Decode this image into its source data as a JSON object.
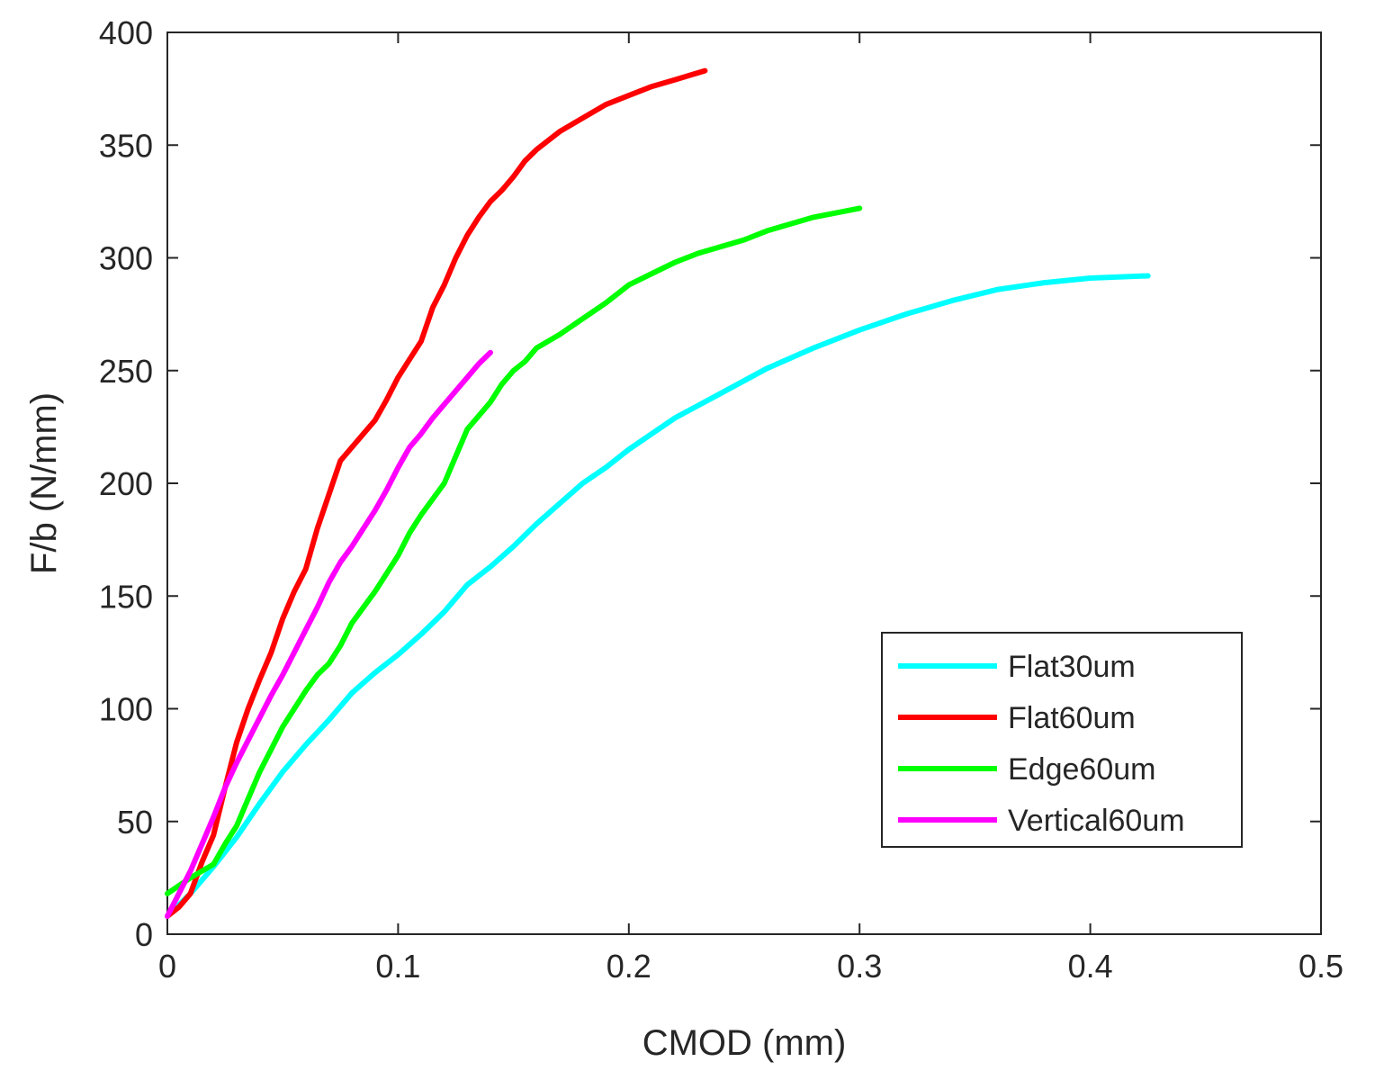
{
  "chart_data": {
    "type": "line",
    "xlabel": "CMOD (mm)",
    "ylabel": "F/b (N/mm)",
    "xlim": [
      0,
      0.5
    ],
    "ylim": [
      0,
      400
    ],
    "xticks": [
      "0",
      "0.1",
      "0.2",
      "0.3",
      "0.4",
      "0.5"
    ],
    "yticks": [
      "0",
      "50",
      "100",
      "150",
      "200",
      "250",
      "300",
      "350",
      "400"
    ],
    "grid": false,
    "legend_position": "bottom-right",
    "series": [
      {
        "name": "Flat30um",
        "color": "#00ffff",
        "points": [
          [
            0,
            8
          ],
          [
            0.01,
            18
          ],
          [
            0.02,
            30
          ],
          [
            0.03,
            43
          ],
          [
            0.04,
            58
          ],
          [
            0.05,
            72
          ],
          [
            0.06,
            84
          ],
          [
            0.07,
            95
          ],
          [
            0.08,
            107
          ],
          [
            0.09,
            116
          ],
          [
            0.1,
            124
          ],
          [
            0.11,
            133
          ],
          [
            0.12,
            143
          ],
          [
            0.13,
            155
          ],
          [
            0.14,
            163
          ],
          [
            0.15,
            172
          ],
          [
            0.16,
            182
          ],
          [
            0.17,
            191
          ],
          [
            0.18,
            200
          ],
          [
            0.19,
            207
          ],
          [
            0.2,
            215
          ],
          [
            0.22,
            229
          ],
          [
            0.24,
            240
          ],
          [
            0.26,
            251
          ],
          [
            0.28,
            260
          ],
          [
            0.3,
            268
          ],
          [
            0.32,
            275
          ],
          [
            0.34,
            281
          ],
          [
            0.36,
            286
          ],
          [
            0.38,
            289
          ],
          [
            0.4,
            291
          ],
          [
            0.425,
            292
          ]
        ]
      },
      {
        "name": "Flat60um",
        "color": "#ff0000",
        "points": [
          [
            0,
            8
          ],
          [
            0.005,
            12
          ],
          [
            0.01,
            18
          ],
          [
            0.015,
            32
          ],
          [
            0.02,
            44
          ],
          [
            0.025,
            65
          ],
          [
            0.03,
            85
          ],
          [
            0.035,
            100
          ],
          [
            0.04,
            113
          ],
          [
            0.045,
            125
          ],
          [
            0.05,
            140
          ],
          [
            0.055,
            152
          ],
          [
            0.06,
            162
          ],
          [
            0.065,
            180
          ],
          [
            0.07,
            195
          ],
          [
            0.075,
            210
          ],
          [
            0.08,
            216
          ],
          [
            0.085,
            222
          ],
          [
            0.09,
            228
          ],
          [
            0.095,
            237
          ],
          [
            0.1,
            247
          ],
          [
            0.105,
            255
          ],
          [
            0.11,
            263
          ],
          [
            0.115,
            278
          ],
          [
            0.12,
            288
          ],
          [
            0.125,
            300
          ],
          [
            0.13,
            310
          ],
          [
            0.135,
            318
          ],
          [
            0.14,
            325
          ],
          [
            0.145,
            330
          ],
          [
            0.15,
            336
          ],
          [
            0.155,
            343
          ],
          [
            0.16,
            348
          ],
          [
            0.17,
            356
          ],
          [
            0.18,
            362
          ],
          [
            0.19,
            368
          ],
          [
            0.2,
            372
          ],
          [
            0.21,
            376
          ],
          [
            0.22,
            379
          ],
          [
            0.233,
            383
          ]
        ]
      },
      {
        "name": "Edge60um",
        "color": "#00ff00",
        "points": [
          [
            0,
            18
          ],
          [
            0.01,
            25
          ],
          [
            0.02,
            31
          ],
          [
            0.025,
            40
          ],
          [
            0.03,
            48
          ],
          [
            0.035,
            60
          ],
          [
            0.04,
            72
          ],
          [
            0.045,
            82
          ],
          [
            0.05,
            92
          ],
          [
            0.055,
            100
          ],
          [
            0.06,
            108
          ],
          [
            0.065,
            115
          ],
          [
            0.07,
            120
          ],
          [
            0.075,
            128
          ],
          [
            0.08,
            138
          ],
          [
            0.085,
            145
          ],
          [
            0.09,
            152
          ],
          [
            0.095,
            160
          ],
          [
            0.1,
            168
          ],
          [
            0.105,
            178
          ],
          [
            0.11,
            186
          ],
          [
            0.115,
            193
          ],
          [
            0.12,
            200
          ],
          [
            0.125,
            212
          ],
          [
            0.13,
            224
          ],
          [
            0.135,
            230
          ],
          [
            0.14,
            236
          ],
          [
            0.145,
            244
          ],
          [
            0.15,
            250
          ],
          [
            0.155,
            254
          ],
          [
            0.16,
            260
          ],
          [
            0.17,
            266
          ],
          [
            0.18,
            273
          ],
          [
            0.19,
            280
          ],
          [
            0.2,
            288
          ],
          [
            0.21,
            293
          ],
          [
            0.22,
            298
          ],
          [
            0.23,
            302
          ],
          [
            0.24,
            305
          ],
          [
            0.25,
            308
          ],
          [
            0.26,
            312
          ],
          [
            0.27,
            315
          ],
          [
            0.28,
            318
          ],
          [
            0.29,
            320
          ],
          [
            0.3,
            322
          ]
        ]
      },
      {
        "name": "Vertical60um",
        "color": "#ff00ff",
        "points": [
          [
            0,
            8
          ],
          [
            0.005,
            18
          ],
          [
            0.01,
            28
          ],
          [
            0.015,
            40
          ],
          [
            0.02,
            52
          ],
          [
            0.025,
            65
          ],
          [
            0.03,
            76
          ],
          [
            0.035,
            86
          ],
          [
            0.04,
            96
          ],
          [
            0.045,
            106
          ],
          [
            0.05,
            115
          ],
          [
            0.055,
            125
          ],
          [
            0.06,
            135
          ],
          [
            0.065,
            145
          ],
          [
            0.07,
            156
          ],
          [
            0.075,
            165
          ],
          [
            0.08,
            172
          ],
          [
            0.085,
            180
          ],
          [
            0.09,
            188
          ],
          [
            0.095,
            197
          ],
          [
            0.1,
            207
          ],
          [
            0.105,
            216
          ],
          [
            0.11,
            222
          ],
          [
            0.115,
            229
          ],
          [
            0.12,
            235
          ],
          [
            0.125,
            241
          ],
          [
            0.13,
            247
          ],
          [
            0.135,
            253
          ],
          [
            0.14,
            258
          ]
        ]
      }
    ]
  }
}
